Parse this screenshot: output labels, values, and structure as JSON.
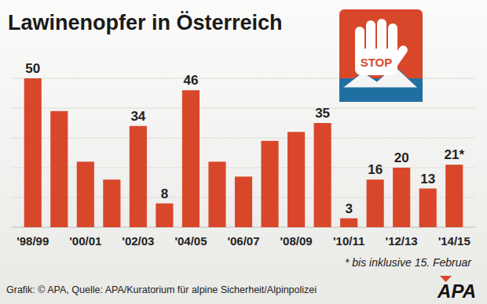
{
  "chart_data": {
    "type": "bar",
    "title": "Lawinenopfer in Österreich",
    "categories": [
      "'98/99",
      null,
      "'00/01",
      null,
      "'02/03",
      null,
      "'04/05",
      null,
      "'06/07",
      null,
      "'08/09",
      null,
      "'10/11",
      null,
      "'12/13",
      null,
      "'14/15"
    ],
    "values": [
      50,
      39,
      22,
      16,
      34,
      8,
      46,
      22,
      17,
      29,
      32,
      35,
      3,
      16,
      20,
      13,
      21
    ],
    "value_labels": [
      "50",
      null,
      null,
      null,
      "34",
      "8",
      "46",
      null,
      null,
      null,
      null,
      "35",
      "3",
      "16",
      "20",
      "13",
      "21*"
    ],
    "data_labels": true,
    "color": "#d9472b",
    "ylim": [
      0,
      50
    ],
    "yticks": [
      0,
      10,
      20,
      30,
      40,
      50
    ],
    "grid": true,
    "tick_labels": "x",
    "footnote": "* bis inklusive 15. Februar",
    "source": "Grafik: © APA, Quelle: APA/Kuratorium für alpine Sicherheit/Alpinpolizei",
    "icon_label": "STOP",
    "logo": "APA"
  }
}
